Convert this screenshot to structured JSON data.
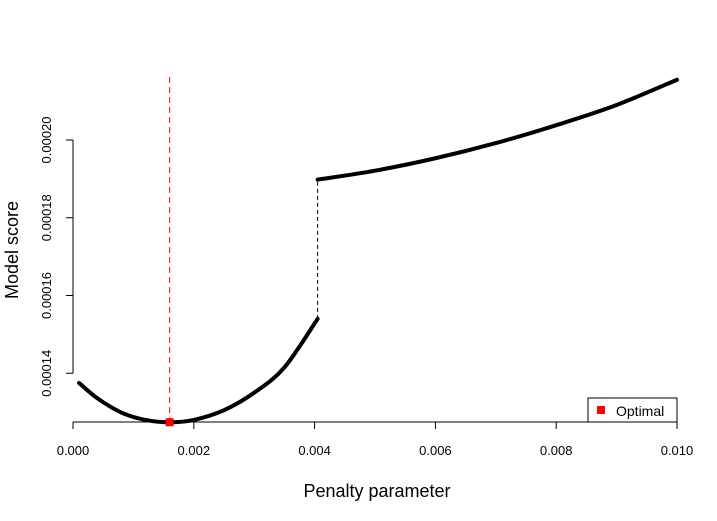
{
  "chart_data": {
    "type": "line",
    "title": "",
    "xlabel": "Penalty parameter",
    "ylabel": "Model score",
    "xlim": [
      0.0,
      0.01
    ],
    "ylim": [
      0.00012746,
      0.0002162
    ],
    "grid": false,
    "legend_position": "bottom-right",
    "x_ticks": [
      {
        "value": 0.0,
        "label": "0.000"
      },
      {
        "value": 0.002,
        "label": "0.002"
      },
      {
        "value": 0.004,
        "label": "0.004"
      },
      {
        "value": 0.006,
        "label": "0.006"
      },
      {
        "value": 0.008,
        "label": "0.008"
      },
      {
        "value": 0.01,
        "label": "0.010"
      }
    ],
    "y_ticks": [
      {
        "value": 0.00014,
        "label": "0.00014"
      },
      {
        "value": 0.00016,
        "label": "0.00016"
      },
      {
        "value": 0.00018,
        "label": "0.00018"
      },
      {
        "value": 0.0002,
        "label": "0.00020"
      }
    ],
    "series": [
      {
        "color": "#000000",
        "segments": [
          {
            "x": [
              0.0001,
              0.0004,
              0.0008,
              0.0012,
              0.0016,
              0.002,
              0.0025,
              0.003,
              0.0035,
              0.00405
            ],
            "y": [
              0.0001375,
              0.0001336,
              0.0001299,
              0.000128,
              0.0001274,
              0.000128,
              0.0001305,
              0.000135,
              0.0001415,
              0.000154
            ]
          },
          {
            "x": [
              0.00405,
              0.005,
              0.006,
              0.007,
              0.008,
              0.009,
              0.01
            ],
            "y": [
              0.0001898,
              0.0001921,
              0.0001953,
              0.0001992,
              0.0002038,
              0.000209,
              0.0002155
            ]
          }
        ]
      }
    ],
    "jump_line": {
      "x": 0.00405,
      "y_from": 0.000154,
      "y_to": 0.0001898,
      "color": "#000000",
      "style": "dashed"
    },
    "optimal": {
      "name": "Optimal",
      "x": 0.0016,
      "y": 0.0001274,
      "color": "#ff0000",
      "vline_color": "#ff0000",
      "vline_style": "dashed"
    }
  }
}
